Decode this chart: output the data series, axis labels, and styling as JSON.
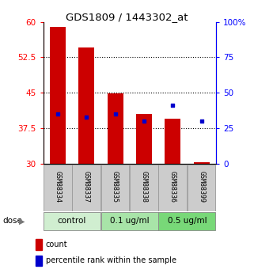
{
  "title": "GDS1809 / 1443302_at",
  "samples": [
    "GSM88334",
    "GSM88337",
    "GSM88335",
    "GSM88338",
    "GSM88336",
    "GSM88399"
  ],
  "groups": [
    {
      "label": "control",
      "indices": [
        0,
        1
      ],
      "color": "#d0eed0"
    },
    {
      "label": "0.1 ug/ml",
      "indices": [
        2,
        3
      ],
      "color": "#a8e4a8"
    },
    {
      "label": "0.5 ug/ml",
      "indices": [
        4,
        5
      ],
      "color": "#78d878"
    }
  ],
  "bar_bottom": 30,
  "bar_values": [
    59.0,
    54.5,
    44.8,
    40.5,
    39.5,
    30.3
  ],
  "percentile_values": [
    35,
    33,
    35,
    30,
    41,
    30
  ],
  "bar_color": "#cc0000",
  "dot_color": "#0000cc",
  "ylim_left": [
    30,
    60
  ],
  "ylim_right": [
    0,
    100
  ],
  "yticks_left": [
    30,
    37.5,
    45,
    52.5,
    60
  ],
  "yticks_right": [
    0,
    25,
    50,
    75,
    100
  ],
  "ytick_labels_left": [
    "30",
    "37.5",
    "45",
    "52.5",
    "60"
  ],
  "ytick_labels_right": [
    "0",
    "25",
    "50",
    "75",
    "100%"
  ],
  "grid_values": [
    37.5,
    45,
    52.5
  ],
  "dose_label": "dose",
  "legend": [
    {
      "color": "#cc0000",
      "label": "count"
    },
    {
      "color": "#0000cc",
      "label": "percentile rank within the sample"
    }
  ],
  "figsize": [
    3.21,
    3.45
  ],
  "dpi": 100
}
